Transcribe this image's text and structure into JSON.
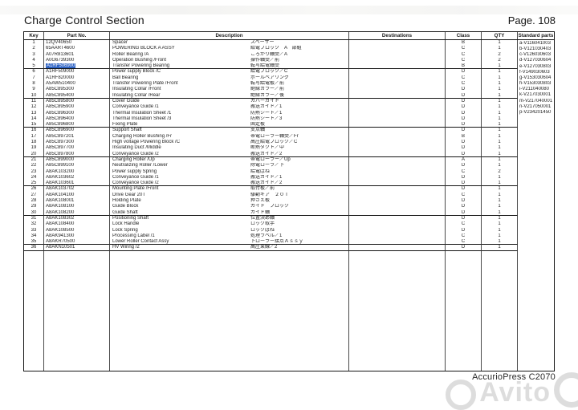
{
  "page": {
    "title": "Charge Control Section",
    "page_number": "Page. 108",
    "footer_model": "AccurioPress C2070",
    "watermark": "Avito",
    "selection_color": "#2e63c4"
  },
  "table": {
    "headers": {
      "key": "Key",
      "part_no": "Part No.",
      "description": "Description",
      "destinations": "Destinations",
      "class": "Class",
      "qty": "QTY",
      "standard_parts": "Standard parts"
    },
    "standard_parts": [
      "a-V116041003",
      "b-V121030403",
      "c-V126030603",
      "d-V127030604",
      "e-V127030803",
      "f-V149030603",
      "g-V153030604",
      "h-V153030803",
      "i-V211040080",
      "k-V217030001",
      "m-V217040001",
      "n-V217050001",
      "p-V234201450"
    ],
    "section_end_keys": [
      5,
      10,
      15,
      20,
      25,
      30,
      35,
      36
    ],
    "rows": [
      {
        "key": "1",
        "part": "12QV40650",
        "en": "Spacer",
        "jp": "スペーサー",
        "dest": "",
        "cls": "B",
        "qty": "1"
      },
      {
        "key": "2",
        "part": "65AART4600",
        "en": "POWERING BLOCK A ASSY",
        "jp": "給電ブロック　A　部組",
        "dest": "",
        "cls": "C",
        "qty": "1"
      },
      {
        "key": "3",
        "part": "A07R813601",
        "en": "Roller Bearing /A",
        "jp": "ころがり軸受／A",
        "dest": "",
        "cls": "C",
        "qty": "2"
      },
      {
        "key": "4",
        "part": "A0G6739300",
        "en": "Operation Bushing /Front",
        "jp": "操作軸受／前",
        "dest": "",
        "cls": "C",
        "qty": "2"
      },
      {
        "key": "5",
        "part": "A1RF506900",
        "en": "Transfer Powering Bearing",
        "jp": "転写給電軸受",
        "dest": "",
        "cls": "B",
        "qty": "1",
        "hl": true
      },
      {
        "key": "6",
        "part": "A1RF509000",
        "en": "Power supply  Block  /C",
        "jp": "給電ブロック／C",
        "dest": "",
        "cls": "D",
        "qty": "1"
      },
      {
        "key": "7",
        "part": "A1RF820000",
        "en": "Ball Bearing",
        "jp": "ボールベアリング",
        "dest": "",
        "cls": "C",
        "qty": "1"
      },
      {
        "key": "8",
        "part": "A5AW510400",
        "en": "Transfer Powering Plate /Front",
        "jp": "転写給電板／前",
        "dest": "",
        "cls": "C",
        "qty": "1"
      },
      {
        "key": "9",
        "part": "A85C895300",
        "en": "Insulating  Collar  /Front",
        "jp": "絶縁カラー／前",
        "dest": "",
        "cls": "D",
        "qty": "1"
      },
      {
        "key": "10",
        "part": "A85C895400",
        "en": "Insulating  Collar  /Rear",
        "jp": "絶縁カラー／後",
        "dest": "",
        "cls": "D",
        "qty": "1"
      },
      {
        "key": "11",
        "part": "A85C895800",
        "en": "Cover  Guide",
        "jp": "カバーガイド",
        "dest": "",
        "cls": "D",
        "qty": "1"
      },
      {
        "key": "12",
        "part": "A85C895900",
        "en": "Conveyance  Guide  /1",
        "jp": "搬送ガイド／1",
        "dest": "",
        "cls": "D",
        "qty": "1"
      },
      {
        "key": "13",
        "part": "A85C896300",
        "en": "Thermal Insulation  Sheet  /1",
        "jp": "防熱シート／1",
        "dest": "",
        "cls": "D",
        "qty": "1"
      },
      {
        "key": "14",
        "part": "A85C896400",
        "en": "Thermal Insulation  Sheet  /3",
        "jp": "防熱シート／3",
        "dest": "",
        "cls": "D",
        "qty": "1"
      },
      {
        "key": "15",
        "part": "A85C896800",
        "en": "Fixing  Plate",
        "jp": "固定板",
        "dest": "",
        "cls": "D",
        "qty": "1"
      },
      {
        "key": "16",
        "part": "A85C896900",
        "en": "Support  Shaft",
        "jp": "支点軸",
        "dest": "",
        "cls": "D",
        "qty": "1"
      },
      {
        "key": "17",
        "part": "A85C897201",
        "en": "Charging Roller Bushing /Fr",
        "jp": "帯電ローラー軸受／Fr",
        "dest": "",
        "cls": "B",
        "qty": "1"
      },
      {
        "key": "18",
        "part": "A85C897300",
        "en": "High voltage Powering Block /C",
        "jp": "高圧給電ブロック／C",
        "dest": "",
        "cls": "D",
        "qty": "1"
      },
      {
        "key": "19",
        "part": "A85C897700",
        "en": "Insulating  Duct  /Middle",
        "jp": "断熱ダクト／中",
        "dest": "",
        "cls": "D",
        "qty": "1"
      },
      {
        "key": "20",
        "part": "A85C897800",
        "en": "Conveyance  Guide  /2",
        "jp": "搬送ガイド／2",
        "dest": "",
        "cls": "D",
        "qty": "1"
      },
      {
        "key": "21",
        "part": "A85C899000",
        "en": "Charging Roller /Up",
        "jp": "帯電ローラー／Up",
        "dest": "",
        "cls": "A",
        "qty": "1"
      },
      {
        "key": "22",
        "part": "A85C899100",
        "en": "Neutralizing  Roller  /Lower",
        "jp": "除電ローラ／下",
        "dest": "",
        "cls": "D",
        "qty": "1"
      },
      {
        "key": "23",
        "part": "A8AK103200",
        "en": "Power supply  Spring",
        "jp": "給電ばね",
        "dest": "",
        "cls": "C",
        "qty": "2"
      },
      {
        "key": "24",
        "part": "A8AK103602",
        "en": "Conveyance  Guide  /1",
        "jp": "搬送ガイド／1",
        "dest": "",
        "cls": "D",
        "qty": "1"
      },
      {
        "key": "25",
        "part": "A8AK103601",
        "en": "Conveyance  Guide  /2",
        "jp": "搬送ガイド／2",
        "dest": "",
        "cls": "D",
        "qty": "1"
      },
      {
        "key": "26",
        "part": "A8AK103702",
        "en": "Mounting  Plate  /Front",
        "jp": "取付板／前",
        "dest": "",
        "cls": "D",
        "qty": "1"
      },
      {
        "key": "27",
        "part": "A8AK104100",
        "en": "Drive  Gear  20T",
        "jp": "駆動ギア　２０Ｔ",
        "dest": "",
        "cls": "C",
        "qty": "1"
      },
      {
        "key": "28",
        "part": "A8AK108001",
        "en": "Holding  Plate",
        "jp": "押さえ板",
        "dest": "",
        "cls": "D",
        "qty": "1"
      },
      {
        "key": "29",
        "part": "A8AK108100",
        "en": "Guide  Block",
        "jp": "ガイド　ブロック",
        "dest": "",
        "cls": "D",
        "qty": "1"
      },
      {
        "key": "30",
        "part": "A8AK108200",
        "en": "Guide  Shaft",
        "jp": "ガイド軸",
        "dest": "",
        "cls": "D",
        "qty": "1"
      },
      {
        "key": "31",
        "part": "A8AK108302",
        "en": "Positioning  Shaft",
        "jp": "位置決め軸",
        "dest": "",
        "cls": "D",
        "qty": "1"
      },
      {
        "key": "32",
        "part": "A8AK108400",
        "en": "Lock  Handle",
        "jp": "ロック取手",
        "dest": "",
        "cls": "C",
        "qty": "1"
      },
      {
        "key": "33",
        "part": "A8AK108500",
        "en": "Lock  Spring",
        "jp": "ロックばね",
        "dest": "",
        "cls": "D",
        "qty": "1"
      },
      {
        "key": "34",
        "part": "A8AK941300",
        "en": "Processing  Label  /1",
        "jp": "処理ラベル／1",
        "dest": "",
        "cls": "C",
        "qty": "1"
      },
      {
        "key": "35",
        "part": "A8AKR70500",
        "en": "Lower Roller Contact Assy",
        "jp": "下ローラー接点Ａｓｓｙ",
        "dest": "",
        "cls": "C",
        "qty": "1"
      },
      {
        "key": "36",
        "part": "A8AKN10501",
        "en": "HV  Wiring  /2",
        "jp": "高圧束線／2",
        "dest": "",
        "cls": "D",
        "qty": "1"
      }
    ]
  }
}
